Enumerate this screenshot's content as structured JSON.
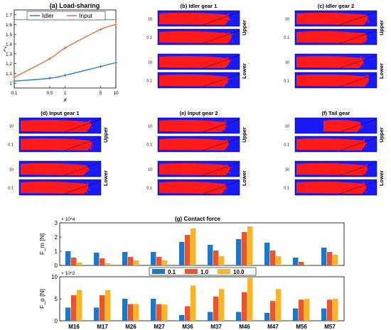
{
  "colors": {
    "idler": "#2f7fc1",
    "input": "#e8703a",
    "map_bg": "#1a1aff",
    "map_fg": "#ff1a1a",
    "bar_01": "#1f77c4",
    "bar_10": "#e8562e",
    "bar_100": "#f7b52a",
    "ref_line": "#2a9da0"
  },
  "panel_a": {
    "title": "(a) Load-sharing",
    "xlabel": "κ",
    "ylabel": "ζ",
    "legend": [
      "Idler",
      "Input"
    ],
    "xticks": [
      "0.1",
      "0.5",
      "1",
      "5",
      "10"
    ],
    "yticks": [
      "1",
      "1.1",
      "1.2",
      "1.3",
      "1.4",
      "1.5",
      "1.6",
      "1.7"
    ]
  },
  "maps": {
    "tick_top": "10",
    "tick_bottom": "0.1",
    "side_upper": "Upper",
    "side_lower": "Lower",
    "titles": {
      "b": "(b) Idler gear 1",
      "c": "(c) Idler gear 2",
      "d": "(d) Input gear 1",
      "e": "(e) Input gear 2",
      "f": "(f) Tail gear"
    }
  },
  "panel_g": {
    "title": "(g) Contact force",
    "top_ylabel": "F_m [N]",
    "top_mult": "× 10^4",
    "top_yticks": [
      "0",
      "1",
      "2",
      "3"
    ],
    "bottom_ylabel": "F_p [N]",
    "bottom_mult": "× 10^2",
    "bottom_yticks": [
      "0",
      "5",
      "10"
    ],
    "legend": [
      "0.1",
      "1.0",
      "10.0"
    ]
  },
  "chart_data": [
    {
      "type": "line",
      "title": "(a) Load-sharing",
      "xlabel": "κ",
      "ylabel": "ζ",
      "xscale": "log",
      "xlim": [
        0.1,
        10
      ],
      "ylim": [
        0.95,
        1.75
      ],
      "grid": false,
      "legend_position": "top",
      "reference_line": 1.65,
      "series": [
        {
          "name": "Idler",
          "x": [
            0.1,
            0.5,
            1,
            5,
            10
          ],
          "y": [
            1.02,
            1.05,
            1.08,
            1.17,
            1.21
          ]
        },
        {
          "name": "Input",
          "x": [
            0.1,
            0.5,
            1,
            5,
            10
          ],
          "y": [
            1.06,
            1.25,
            1.36,
            1.55,
            1.6
          ]
        }
      ]
    },
    {
      "type": "bar",
      "title": "(g) Contact force",
      "ylabel": "F_m [N]",
      "ylim": [
        0,
        3
      ],
      "categories": [
        "M16",
        "M17",
        "M26",
        "M27",
        "M36",
        "M37",
        "M46",
        "M47",
        "M56",
        "M57"
      ],
      "series": [
        {
          "name": "0.1",
          "values": [
            1.0,
            0.9,
            0.95,
            0.95,
            1.65,
            1.45,
            1.85,
            1.6,
            0.55,
            1.25
          ]
        },
        {
          "name": "1.0",
          "values": [
            0.55,
            0.5,
            0.6,
            0.6,
            2.15,
            1.05,
            2.35,
            1.05,
            0.25,
            0.95
          ]
        },
        {
          "name": "10.0",
          "values": [
            0.2,
            0.15,
            0.35,
            0.35,
            2.6,
            0.65,
            2.75,
            0.65,
            0.05,
            0.75
          ]
        }
      ]
    },
    {
      "type": "bar",
      "ylabel": "F_p [N]",
      "ylim": [
        0,
        10
      ],
      "legend_position": "top-center",
      "categories": [
        "M16",
        "M17",
        "M26",
        "M27",
        "M36",
        "M37",
        "M46",
        "M47",
        "M56",
        "M57"
      ],
      "series": [
        {
          "name": "0.1",
          "values": [
            3.0,
            3.0,
            5.0,
            5.0,
            1.3,
            2.0,
            2.0,
            1.8,
            2.8,
            2.8
          ]
        },
        {
          "name": "1.0",
          "values": [
            5.8,
            5.8,
            3.8,
            3.8,
            3.3,
            5.5,
            6.5,
            4.5,
            4.8,
            4.8
          ]
        },
        {
          "name": "10.0",
          "values": [
            7.0,
            7.0,
            3.8,
            3.7,
            8.0,
            7.2,
            9.8,
            7.2,
            5.0,
            5.0
          ]
        }
      ]
    }
  ]
}
